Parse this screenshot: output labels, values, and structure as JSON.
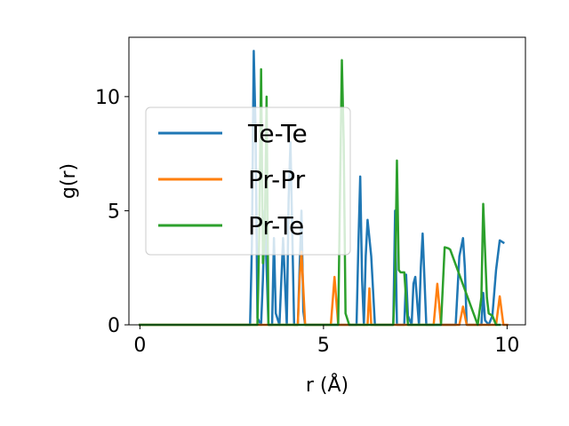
{
  "chart_data": {
    "type": "line",
    "title": "",
    "xlabel": "r (Å)",
    "ylabel": "g(r)",
    "xlim": [
      -0.3,
      10.5
    ],
    "ylim": [
      0,
      12.6
    ],
    "xticks": [
      0,
      5,
      10
    ],
    "yticks": [
      0,
      5,
      10
    ],
    "grid": false,
    "legend_position": "upper-left",
    "series": [
      {
        "name": "Te-Te",
        "color": "#1f77b4",
        "x": [
          0,
          3.0,
          3.05,
          3.1,
          3.15,
          3.2,
          3.3,
          3.35,
          3.4,
          3.5,
          3.6,
          3.65,
          3.7,
          3.8,
          3.9,
          4.0,
          4.05,
          4.1,
          4.2,
          4.3,
          4.4,
          4.45,
          4.5,
          4.6,
          4.7,
          5.9,
          5.95,
          6.0,
          6.05,
          6.1,
          6.15,
          6.2,
          6.3,
          6.4,
          6.9,
          6.95,
          7.0,
          7.05,
          7.2,
          7.25,
          7.3,
          7.4,
          7.45,
          7.5,
          7.6,
          7.65,
          7.7,
          7.8,
          8.6,
          8.7,
          8.8,
          8.85,
          8.9,
          9.3,
          9.35,
          9.4,
          9.5,
          9.6,
          9.7,
          9.8,
          9.9
        ],
        "y": [
          0,
          0,
          3.5,
          12.0,
          8.5,
          0.3,
          0,
          2.0,
          5.0,
          0,
          0,
          3.8,
          0.5,
          0,
          3.8,
          0,
          5.5,
          8.0,
          0,
          0,
          5.0,
          0.6,
          0,
          0,
          0,
          0,
          3.5,
          6.5,
          2.0,
          0,
          3.0,
          4.6,
          3.0,
          0,
          0,
          5.0,
          0,
          0,
          0,
          2.2,
          0.4,
          0,
          1.8,
          2.1,
          0,
          2.5,
          4.0,
          0,
          0,
          3.0,
          3.8,
          2.5,
          0,
          0,
          1.4,
          0.2,
          0,
          0.4,
          2.4,
          3.7,
          3.6
        ]
      },
      {
        "name": "Pr-Pr",
        "color": "#ff7f0e",
        "x": [
          0,
          4.3,
          4.35,
          4.4,
          4.5,
          5.2,
          5.3,
          5.4,
          6.2,
          6.25,
          6.3,
          8.0,
          8.1,
          8.2,
          8.7,
          8.8,
          8.9,
          9.7,
          9.8,
          9.9,
          10.0
        ],
        "y": [
          0,
          0,
          2.0,
          3.2,
          0,
          0,
          2.1,
          0,
          0,
          1.6,
          0,
          0,
          1.8,
          0,
          0,
          0.8,
          0,
          0,
          1.25,
          0,
          0
        ]
      },
      {
        "name": "Pr-Te",
        "color": "#2ca02c",
        "x": [
          0,
          3.2,
          3.25,
          3.3,
          3.35,
          3.4,
          3.45,
          3.5,
          5.4,
          5.5,
          5.55,
          5.6,
          5.7,
          6.9,
          6.95,
          7.0,
          7.05,
          7.1,
          7.2,
          7.3,
          8.2,
          8.3,
          8.4,
          8.45,
          9.2,
          9.3,
          9.35,
          9.45,
          9.5,
          9.6,
          9.7,
          9.8
        ],
        "y": [
          0,
          0,
          4.0,
          11.2,
          2.7,
          3.8,
          10.0,
          0,
          0,
          11.6,
          8.0,
          0.5,
          0,
          0,
          2.0,
          7.2,
          2.4,
          2.3,
          2.3,
          0,
          0,
          3.4,
          3.35,
          3.3,
          0,
          1.2,
          5.3,
          1.2,
          0.5,
          0.4,
          0,
          0
        ]
      }
    ]
  }
}
